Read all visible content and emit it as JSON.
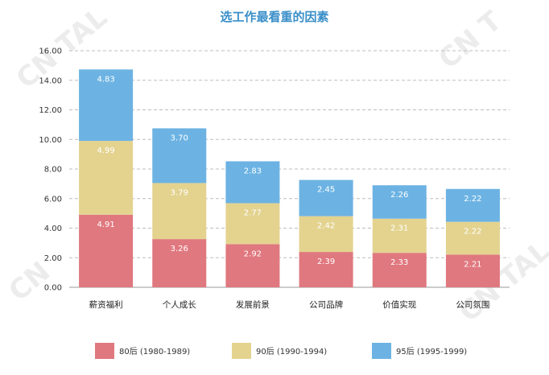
{
  "chart_data": {
    "type": "bar",
    "stacked": true,
    "title": "选工作最看重的因素",
    "categories": [
      "薪资福利",
      "个人成长",
      "发展前景",
      "公司品牌",
      "价值实现",
      "公司氛围"
    ],
    "series": [
      {
        "name": "80后 (1980-1989)",
        "color": "#e0787f",
        "values": [
          4.91,
          3.26,
          2.92,
          2.39,
          2.33,
          2.21
        ],
        "labels": [
          "4.91",
          "3.26",
          "2.92",
          "2.39",
          "2.33",
          "2.21"
        ]
      },
      {
        "name": "90后 (1990-1994)",
        "color": "#e3d38f",
        "values": [
          4.99,
          3.79,
          2.77,
          2.42,
          2.31,
          2.22
        ],
        "labels": [
          "4.99",
          "3.79",
          "2.77",
          "2.42",
          "2.31",
          "2.22"
        ]
      },
      {
        "name": "95后 (1995-1999)",
        "color": "#6cb3e3",
        "values": [
          4.83,
          3.7,
          2.83,
          2.45,
          2.26,
          2.22
        ],
        "labels": [
          "4.83",
          "3.70",
          "2.83",
          "2.45",
          "2.26",
          "2.22"
        ]
      }
    ],
    "ylim": [
      0,
      16
    ],
    "yticks": [
      "0.00",
      "2.00",
      "4.00",
      "6.00",
      "8.00",
      "10.00",
      "12.00",
      "14.00",
      "16.00"
    ],
    "grid": true,
    "legend_position": "bottom"
  },
  "watermark": {
    "text": "CNTALE"
  }
}
